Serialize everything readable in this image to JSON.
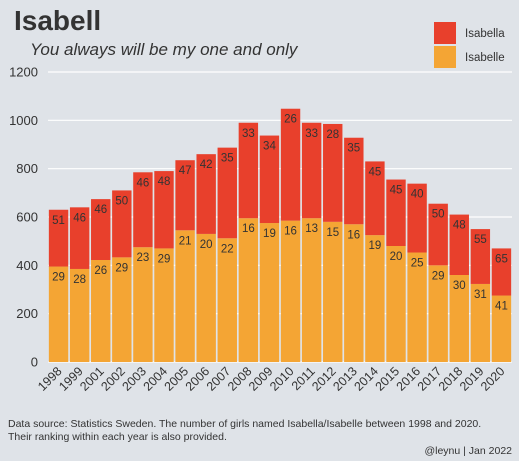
{
  "chart_data": {
    "type": "bar",
    "stacked": true,
    "title": "Isabell",
    "subtitle": "You always will be my one and only",
    "xlabel": "",
    "ylabel": "",
    "ylim": [
      0,
      1200
    ],
    "yticks": [
      "0",
      "200",
      "400",
      "600",
      "800",
      "1000",
      "1200"
    ],
    "grid": "horizontal",
    "legend_position": "top-right",
    "highlight_category": "2011",
    "highlight_color": "#e31a1c",
    "categories": [
      "1998",
      "1999",
      "2001",
      "2002",
      "2003",
      "2004",
      "2005",
      "2006",
      "2007",
      "2008",
      "2009",
      "2010",
      "2011",
      "2012",
      "2013",
      "2014",
      "2015",
      "2016",
      "2017",
      "2018",
      "2019",
      "2020"
    ],
    "series": [
      {
        "name": "Isabelle",
        "color": "#f4a534",
        "values": [
          395,
          385,
          422,
          433,
          475,
          470,
          545,
          530,
          512,
          595,
          575,
          585,
          595,
          580,
          570,
          525,
          480,
          453,
          400,
          360,
          323,
          275
        ],
        "ranks": [
          "29",
          "28",
          "26",
          "29",
          "23",
          "29",
          "21",
          "20",
          "22",
          "16",
          "19",
          "16",
          "13",
          "15",
          "16",
          "19",
          "20",
          "25",
          "29",
          "30",
          "31",
          "41"
        ]
      },
      {
        "name": "Isabella",
        "color": "#e8402c",
        "values": [
          235,
          255,
          252,
          277,
          310,
          320,
          290,
          330,
          375,
          395,
          362,
          463,
          395,
          405,
          358,
          305,
          275,
          285,
          255,
          250,
          227,
          195
        ],
        "ranks": [
          "51",
          "46",
          "46",
          "50",
          "46",
          "48",
          "47",
          "42",
          "35",
          "33",
          "34",
          "26",
          "33",
          "28",
          "35",
          "45",
          "45",
          "40",
          "50",
          "48",
          "55",
          "65"
        ]
      }
    ],
    "footnote_lines": [
      "Data source: Statistics Sweden. The number of girls named Isabella/Isabelle between 1998 and 2020.",
      "Their ranking within each year is also provided."
    ],
    "credit": "@leynu | Jan 2022"
  }
}
